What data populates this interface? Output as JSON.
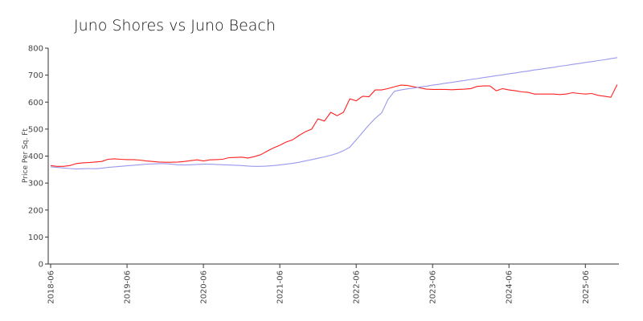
{
  "chart_data": {
    "type": "line",
    "title": "Juno Shores vs  Juno Beach",
    "ylabel": "Price Per Sq. Ft",
    "x": [
      "2018-06",
      "2018-07",
      "2018-08",
      "2018-09",
      "2018-10",
      "2018-11",
      "2018-12",
      "2019-01",
      "2019-02",
      "2019-03",
      "2019-04",
      "2019-05",
      "2019-06",
      "2019-07",
      "2019-08",
      "2019-09",
      "2019-10",
      "2019-11",
      "2019-12",
      "2020-01",
      "2020-02",
      "2020-03",
      "2020-04",
      "2020-05",
      "2020-06",
      "2020-07",
      "2020-08",
      "2020-09",
      "2020-10",
      "2020-11",
      "2020-12",
      "2021-01",
      "2021-02",
      "2021-03",
      "2021-04",
      "2021-05",
      "2021-06",
      "2021-07",
      "2021-08",
      "2021-09",
      "2021-10",
      "2021-11",
      "2021-12",
      "2022-01",
      "2022-02",
      "2022-03",
      "2022-04",
      "2022-05",
      "2022-06",
      "2022-07",
      "2022-08",
      "2022-09",
      "2022-10",
      "2022-11",
      "2022-12",
      "2023-01",
      "2023-02",
      "2023-03",
      "2023-04",
      "2023-05",
      "2023-06",
      "2023-07",
      "2023-08",
      "2023-09",
      "2023-10",
      "2023-11",
      "2023-12",
      "2024-01",
      "2024-02",
      "2024-03",
      "2024-04",
      "2024-05",
      "2024-06",
      "2024-07",
      "2024-08",
      "2024-09",
      "2024-10",
      "2024-11",
      "2024-12",
      "2025-01",
      "2025-02",
      "2025-03",
      "2025-04",
      "2025-05",
      "2025-06",
      "2025-07",
      "2025-08",
      "2025-09",
      "2025-10",
      "2025-11"
    ],
    "series": [
      {
        "color": "#ff2020",
        "values": [
          365,
          362,
          362,
          365,
          372,
          375,
          376,
          378,
          380,
          388,
          390,
          388,
          387,
          387,
          385,
          382,
          380,
          378,
          377,
          377,
          378,
          380,
          383,
          386,
          382,
          386,
          387,
          388,
          394,
          395,
          396,
          393,
          398,
          405,
          418,
          430,
          440,
          452,
          460,
          476,
          490,
          500,
          538,
          530,
          562,
          550,
          562,
          612,
          605,
          622,
          620,
          645,
          645,
          650,
          657,
          663,
          662,
          657,
          653,
          648,
          647,
          647,
          647,
          646,
          647,
          648,
          650,
          658,
          660,
          660,
          642,
          650,
          645,
          642,
          638,
          636,
          630,
          630,
          630,
          630,
          628,
          630,
          635,
          632,
          630,
          632,
          625,
          622,
          618,
          665
        ]
      },
      {
        "color": "#9999ee",
        "values": [
          360,
          358,
          356,
          354,
          352,
          353,
          354,
          353,
          355,
          358,
          360,
          362,
          364,
          366,
          368,
          370,
          371,
          372,
          372,
          370,
          368,
          367,
          368,
          369,
          370,
          370,
          369,
          368,
          367,
          366,
          365,
          363,
          362,
          362,
          363,
          365,
          367,
          370,
          373,
          377,
          382,
          387,
          392,
          397,
          403,
          410,
          420,
          433,
          460,
          488,
          515,
          540,
          560,
          610,
          640,
          645,
          649,
          652,
          656,
          659,
          663,
          666,
          670,
          673,
          677,
          680,
          684,
          687,
          691,
          694,
          698,
          701,
          705,
          708,
          712,
          715,
          719,
          722,
          726,
          729,
          733,
          736,
          740,
          743,
          747,
          750,
          754,
          757,
          761,
          765
        ]
      }
    ],
    "xticks": [
      "2018-06",
      "2019-06",
      "2020-06",
      "2021-06",
      "2022-06",
      "2023-06",
      "2024-06",
      "2025-06"
    ],
    "ylim": [
      0,
      800
    ],
    "yticks": [
      0,
      100,
      200,
      300,
      400,
      500,
      600,
      700,
      800
    ]
  }
}
